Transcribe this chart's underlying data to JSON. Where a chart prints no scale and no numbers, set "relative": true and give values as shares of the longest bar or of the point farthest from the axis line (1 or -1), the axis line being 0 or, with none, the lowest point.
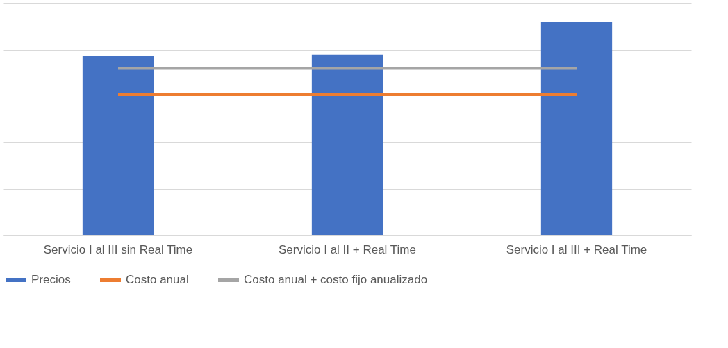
{
  "chart_data": {
    "type": "bar",
    "relative": true,
    "grid": "y",
    "legend": "bottom",
    "categories": [
      "Servicio I al III sin Real Time",
      "Servicio I al II + Real Time",
      "Servicio I al III + Real Time"
    ],
    "series": [
      {
        "name": "Precios",
        "color": "#4472c4",
        "values": [
          0.84,
          0.847,
          1.0
        ]
      },
      {
        "name": "Costo anual",
        "color": "#ed7d31",
        "type": "line",
        "values": [
          0.661,
          0.661,
          0.661
        ]
      },
      {
        "name": "Costo anual + costo fijo anualizado",
        "color": "#a5a5a5",
        "type": "line",
        "values": [
          0.783,
          0.783,
          0.783
        ]
      }
    ]
  }
}
